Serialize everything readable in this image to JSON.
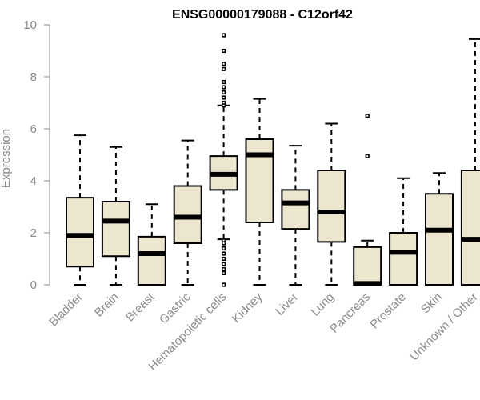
{
  "chart_data": {
    "type": "boxplot",
    "title": "ENSG00000179088 - C12orf42",
    "xlabel": "",
    "ylabel": "Expression",
    "ylim": [
      0,
      10
    ],
    "yticks": [
      0,
      2,
      4,
      6,
      8,
      10
    ],
    "categories": [
      "Bladder",
      "Brain",
      "Breast",
      "Gastric",
      "Hematopoietic cells",
      "Kidney",
      "Liver",
      "Lung",
      "Pancreas",
      "Prostate",
      "Skin",
      "Unknown / Other"
    ],
    "boxes": [
      {
        "min": 0.0,
        "q1": 0.7,
        "median": 1.9,
        "q3": 3.35,
        "max": 5.75,
        "outliers": []
      },
      {
        "min": 0.0,
        "q1": 1.1,
        "median": 2.45,
        "q3": 3.2,
        "max": 5.3,
        "outliers": []
      },
      {
        "min": 0.0,
        "q1": 0.0,
        "median": 1.2,
        "q3": 1.85,
        "max": 3.1,
        "outliers": []
      },
      {
        "min": 0.0,
        "q1": 1.6,
        "median": 2.6,
        "q3": 3.8,
        "max": 5.55,
        "outliers": []
      },
      {
        "min": 1.75,
        "q1": 3.65,
        "median": 4.25,
        "q3": 4.95,
        "max": 6.9,
        "outliers": [
          9.6,
          9.0,
          8.5,
          8.3,
          7.8,
          7.6,
          7.4,
          7.2,
          7.0,
          6.9,
          1.7,
          1.6,
          1.4,
          1.2,
          1.0,
          0.8,
          0.6,
          0.45,
          0.0
        ]
      },
      {
        "min": 0.0,
        "q1": 2.4,
        "median": 5.0,
        "q3": 5.6,
        "max": 7.15,
        "outliers": []
      },
      {
        "min": 0.0,
        "q1": 2.15,
        "median": 3.15,
        "q3": 3.65,
        "max": 5.35,
        "outliers": []
      },
      {
        "min": 0.0,
        "q1": 1.65,
        "median": 2.8,
        "q3": 4.4,
        "max": 6.2,
        "outliers": []
      },
      {
        "min": 0.0,
        "q1": 0.0,
        "median": 0.05,
        "q3": 1.45,
        "max": 1.7,
        "outliers": [
          6.5,
          4.95
        ]
      },
      {
        "min": 0.0,
        "q1": 0.0,
        "median": 1.25,
        "q3": 2.0,
        "max": 4.1,
        "outliers": []
      },
      {
        "min": 0.0,
        "q1": 0.0,
        "median": 2.1,
        "q3": 3.5,
        "max": 4.3,
        "outliers": []
      },
      {
        "min": 0.0,
        "q1": 0.0,
        "median": 1.75,
        "q3": 4.4,
        "max": 9.45,
        "outliers": []
      }
    ]
  }
}
